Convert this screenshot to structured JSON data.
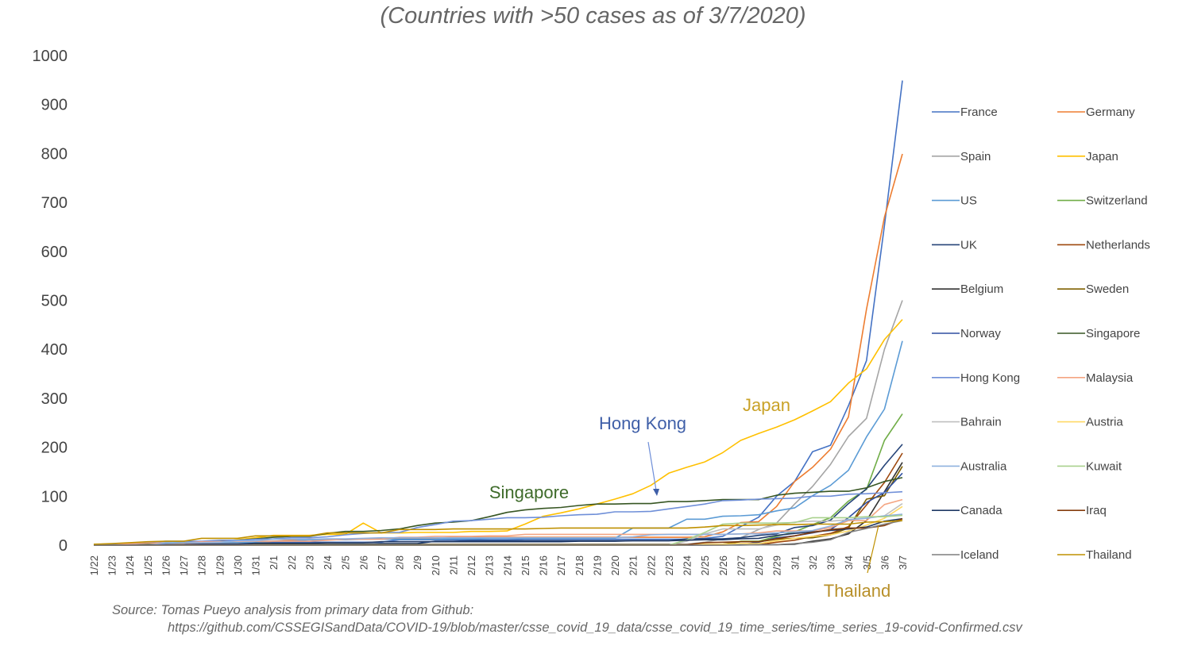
{
  "subtitle": "(Countries with >50 cases as of 3/7/2020)",
  "source_line1": "Source: Tomas Pueyo analysis from primary data from Github:",
  "source_line2": "https://github.com/CSSEGISandData/COVID-19/blob/master/csse_covid_19_data/csse_covid_19_time_series/time_series_19-covid-Confirmed.csv",
  "annotations": [
    {
      "text": "Japan",
      "color": "#C9A227"
    },
    {
      "text": "Hong Kong",
      "color": "#3F5FA8"
    },
    {
      "text": "Singapore",
      "color": "#3E6B2A"
    },
    {
      "text": "Thailand",
      "color": "#B8902A"
    }
  ],
  "chart_data": {
    "type": "line",
    "title": "(Countries with >50 cases as of 3/7/2020)",
    "ylim": [
      0,
      1000
    ],
    "yticks": [
      0,
      100,
      200,
      300,
      400,
      500,
      600,
      700,
      800,
      900,
      1000
    ],
    "x": [
      "1/22",
      "1/23",
      "1/24",
      "1/25",
      "1/26",
      "1/27",
      "1/28",
      "1/29",
      "1/30",
      "1/31",
      "2/1",
      "2/2",
      "2/3",
      "2/4",
      "2/5",
      "2/6",
      "2/7",
      "2/8",
      "2/9",
      "2/10",
      "2/11",
      "2/12",
      "2/13",
      "2/14",
      "2/15",
      "2/16",
      "2/17",
      "2/18",
      "2/19",
      "2/20",
      "2/21",
      "2/22",
      "2/23",
      "2/24",
      "2/25",
      "2/26",
      "2/27",
      "2/28",
      "2/29",
      "3/1",
      "3/2",
      "3/3",
      "3/4",
      "3/5",
      "3/6",
      "3/7"
    ],
    "grid": false,
    "legend_position": "right",
    "series": [
      {
        "name": "France",
        "color": "#4472C4",
        "values": [
          0,
          0,
          2,
          3,
          3,
          3,
          4,
          5,
          5,
          5,
          6,
          6,
          6,
          6,
          6,
          6,
          6,
          11,
          11,
          11,
          11,
          11,
          11,
          11,
          12,
          12,
          12,
          12,
          12,
          12,
          12,
          12,
          12,
          12,
          14,
          18,
          38,
          57,
          100,
          130,
          191,
          204,
          285,
          377,
          653,
          949
        ]
      },
      {
        "name": "Germany",
        "color": "#ED7D31",
        "values": [
          0,
          0,
          0,
          0,
          0,
          1,
          4,
          4,
          4,
          5,
          8,
          10,
          12,
          12,
          12,
          12,
          13,
          13,
          14,
          14,
          16,
          16,
          16,
          16,
          16,
          16,
          16,
          16,
          16,
          16,
          16,
          16,
          16,
          16,
          17,
          27,
          46,
          48,
          79,
          130,
          159,
          196,
          262,
          482,
          670,
          799
        ]
      },
      {
        "name": "Spain",
        "color": "#A5A5A5",
        "values": [
          0,
          0,
          0,
          0,
          0,
          0,
          0,
          0,
          0,
          0,
          1,
          1,
          1,
          1,
          1,
          1,
          1,
          1,
          2,
          2,
          2,
          2,
          2,
          2,
          2,
          2,
          2,
          2,
          2,
          2,
          2,
          2,
          2,
          2,
          6,
          13,
          15,
          32,
          45,
          84,
          120,
          165,
          222,
          259,
          400,
          500
        ]
      },
      {
        "name": "Japan",
        "color": "#FFC000",
        "values": [
          2,
          1,
          2,
          2,
          4,
          4,
          7,
          7,
          11,
          15,
          20,
          20,
          20,
          22,
          22,
          45,
          25,
          25,
          26,
          26,
          26,
          28,
          28,
          29,
          43,
          59,
          66,
          74,
          84,
          94,
          105,
          122,
          147,
          159,
          170,
          189,
          214,
          228,
          241,
          256,
          274,
          293,
          331,
          360,
          420,
          461
        ]
      },
      {
        "name": "US",
        "color": "#5B9BD5",
        "values": [
          1,
          1,
          2,
          2,
          5,
          5,
          5,
          5,
          5,
          6,
          8,
          8,
          11,
          11,
          11,
          12,
          12,
          12,
          12,
          12,
          13,
          13,
          14,
          14,
          14,
          14,
          14,
          14,
          14,
          14,
          35,
          35,
          35,
          53,
          53,
          59,
          60,
          62,
          70,
          76,
          101,
          122,
          153,
          221,
          278,
          417
        ]
      },
      {
        "name": "Switzerland",
        "color": "#70AD47",
        "values": [
          0,
          0,
          0,
          0,
          0,
          0,
          0,
          0,
          0,
          0,
          0,
          0,
          0,
          0,
          0,
          0,
          0,
          0,
          0,
          0,
          0,
          0,
          0,
          0,
          0,
          0,
          0,
          0,
          0,
          0,
          0,
          0,
          0,
          0,
          1,
          1,
          8,
          8,
          18,
          27,
          42,
          56,
          90,
          114,
          214,
          268
        ]
      },
      {
        "name": "UK",
        "color": "#264478",
        "values": [
          0,
          0,
          0,
          0,
          0,
          0,
          0,
          0,
          0,
          2,
          2,
          2,
          2,
          2,
          2,
          2,
          3,
          3,
          3,
          8,
          8,
          9,
          9,
          9,
          9,
          9,
          9,
          9,
          9,
          9,
          9,
          9,
          9,
          13,
          13,
          13,
          15,
          20,
          23,
          36,
          40,
          51,
          85,
          115,
          163,
          206
        ]
      },
      {
        "name": "Netherlands",
        "color": "#9E480E",
        "values": [
          0,
          0,
          0,
          0,
          0,
          0,
          0,
          0,
          0,
          0,
          0,
          0,
          0,
          0,
          0,
          0,
          0,
          0,
          0,
          0,
          0,
          0,
          0,
          0,
          0,
          0,
          0,
          0,
          0,
          0,
          0,
          0,
          0,
          0,
          0,
          0,
          1,
          1,
          6,
          10,
          18,
          24,
          38,
          82,
          128,
          188
        ]
      },
      {
        "name": "Belgium",
        "color": "#333333",
        "values": [
          0,
          0,
          0,
          0,
          0,
          0,
          0,
          0,
          0,
          0,
          0,
          0,
          0,
          1,
          1,
          1,
          1,
          1,
          1,
          1,
          1,
          1,
          1,
          1,
          1,
          1,
          1,
          1,
          1,
          1,
          1,
          1,
          1,
          1,
          1,
          1,
          1,
          1,
          1,
          2,
          8,
          13,
          23,
          50,
          109,
          169
        ]
      },
      {
        "name": "Sweden",
        "color": "#7F6000",
        "values": [
          0,
          0,
          0,
          0,
          0,
          0,
          0,
          0,
          0,
          1,
          1,
          1,
          1,
          1,
          1,
          1,
          1,
          1,
          1,
          1,
          1,
          1,
          1,
          1,
          1,
          1,
          1,
          1,
          1,
          1,
          1,
          1,
          1,
          1,
          1,
          2,
          7,
          7,
          12,
          14,
          15,
          21,
          35,
          94,
          101,
          161
        ]
      },
      {
        "name": "Norway",
        "color": "#2F4FA0",
        "values": [
          0,
          0,
          0,
          0,
          0,
          0,
          0,
          0,
          0,
          0,
          0,
          0,
          0,
          0,
          0,
          0,
          0,
          0,
          0,
          0,
          0,
          0,
          0,
          0,
          0,
          0,
          0,
          0,
          0,
          0,
          0,
          0,
          0,
          0,
          0,
          1,
          1,
          6,
          15,
          19,
          25,
          32,
          56,
          87,
          108,
          147
        ]
      },
      {
        "name": "Singapore",
        "color": "#375623",
        "values": [
          0,
          1,
          3,
          3,
          4,
          5,
          7,
          7,
          10,
          13,
          16,
          18,
          18,
          24,
          28,
          28,
          30,
          33,
          40,
          45,
          47,
          50,
          58,
          67,
          72,
          75,
          77,
          81,
          84,
          84,
          85,
          85,
          89,
          89,
          91,
          93,
          93,
          93,
          102,
          106,
          108,
          110,
          110,
          117,
          130,
          138
        ]
      },
      {
        "name": "Hong Kong",
        "color": "#6F8FD8",
        "values": [
          0,
          2,
          2,
          5,
          8,
          8,
          8,
          10,
          10,
          12,
          13,
          15,
          15,
          17,
          21,
          24,
          26,
          26,
          36,
          42,
          49,
          50,
          53,
          56,
          56,
          57,
          60,
          62,
          63,
          68,
          68,
          69,
          74,
          79,
          84,
          91,
          92,
          94,
          95,
          96,
          100,
          100,
          104,
          105,
          107,
          109
        ]
      },
      {
        "name": "Malaysia",
        "color": "#F4A582",
        "values": [
          0,
          0,
          3,
          4,
          4,
          4,
          7,
          7,
          8,
          8,
          8,
          8,
          8,
          10,
          12,
          12,
          12,
          16,
          16,
          18,
          18,
          18,
          19,
          19,
          22,
          22,
          22,
          22,
          22,
          22,
          22,
          22,
          22,
          22,
          22,
          22,
          23,
          25,
          29,
          29,
          29,
          36,
          50,
          50,
          83,
          93
        ]
      },
      {
        "name": "Bahrain",
        "color": "#BFBFBF",
        "values": [
          0,
          0,
          0,
          0,
          0,
          0,
          0,
          0,
          0,
          0,
          0,
          0,
          0,
          0,
          0,
          0,
          0,
          0,
          0,
          0,
          0,
          0,
          0,
          0,
          0,
          0,
          0,
          0,
          0,
          0,
          0,
          0,
          0,
          8,
          23,
          33,
          33,
          33,
          41,
          47,
          49,
          49,
          52,
          55,
          60,
          85
        ]
      },
      {
        "name": "Austria",
        "color": "#FFD966",
        "values": [
          0,
          0,
          0,
          0,
          0,
          0,
          0,
          0,
          0,
          0,
          0,
          0,
          0,
          0,
          0,
          0,
          0,
          0,
          0,
          0,
          0,
          0,
          0,
          0,
          0,
          0,
          0,
          0,
          0,
          0,
          0,
          0,
          0,
          0,
          2,
          2,
          3,
          3,
          9,
          14,
          18,
          21,
          29,
          41,
          55,
          79
        ]
      },
      {
        "name": "Australia",
        "color": "#8FB1DF",
        "values": [
          0,
          0,
          0,
          0,
          4,
          5,
          5,
          6,
          9,
          9,
          12,
          12,
          12,
          13,
          13,
          14,
          15,
          15,
          15,
          15,
          15,
          15,
          15,
          15,
          15,
          15,
          15,
          15,
          15,
          15,
          17,
          21,
          22,
          22,
          22,
          22,
          23,
          23,
          25,
          27,
          30,
          39,
          52,
          55,
          60,
          63
        ]
      },
      {
        "name": "Kuwait",
        "color": "#A9D18E",
        "values": [
          0,
          0,
          0,
          0,
          0,
          0,
          0,
          0,
          0,
          0,
          0,
          0,
          0,
          0,
          0,
          0,
          0,
          0,
          0,
          0,
          0,
          0,
          0,
          0,
          0,
          0,
          0,
          0,
          0,
          0,
          0,
          0,
          0,
          11,
          26,
          43,
          45,
          45,
          45,
          46,
          56,
          56,
          56,
          58,
          58,
          61
        ]
      },
      {
        "name": "Canada",
        "color": "#1F3864",
        "values": [
          0,
          0,
          0,
          0,
          1,
          1,
          2,
          2,
          2,
          4,
          4,
          4,
          4,
          5,
          5,
          5,
          7,
          7,
          7,
          7,
          7,
          7,
          7,
          7,
          7,
          7,
          7,
          8,
          8,
          8,
          9,
          9,
          9,
          10,
          11,
          11,
          13,
          14,
          20,
          24,
          27,
          30,
          33,
          37,
          49,
          54
        ]
      },
      {
        "name": "Iraq",
        "color": "#843C0C",
        "values": [
          0,
          0,
          0,
          0,
          0,
          0,
          0,
          0,
          0,
          0,
          0,
          0,
          0,
          0,
          0,
          0,
          0,
          0,
          0,
          0,
          0,
          0,
          0,
          0,
          0,
          0,
          0,
          0,
          0,
          0,
          0,
          0,
          0,
          1,
          5,
          6,
          7,
          7,
          13,
          19,
          26,
          32,
          35,
          35,
          40,
          54
        ]
      },
      {
        "name": "Iceland",
        "color": "#7F7F7F",
        "values": [
          0,
          0,
          0,
          0,
          0,
          0,
          0,
          0,
          0,
          0,
          0,
          0,
          0,
          0,
          0,
          0,
          0,
          0,
          0,
          0,
          0,
          0,
          0,
          0,
          0,
          0,
          0,
          0,
          0,
          0,
          0,
          0,
          0,
          0,
          0,
          0,
          0,
          1,
          1,
          3,
          6,
          11,
          26,
          34,
          43,
          50
        ]
      },
      {
        "name": "Thailand",
        "color": "#BF9000",
        "values": [
          2,
          3,
          5,
          7,
          8,
          8,
          14,
          14,
          14,
          19,
          19,
          19,
          19,
          25,
          25,
          25,
          25,
          32,
          32,
          32,
          33,
          33,
          33,
          33,
          33,
          34,
          35,
          35,
          35,
          35,
          35,
          35,
          35,
          35,
          37,
          40,
          40,
          41,
          42,
          42,
          43,
          43,
          43,
          47,
          48,
          50
        ]
      }
    ]
  }
}
